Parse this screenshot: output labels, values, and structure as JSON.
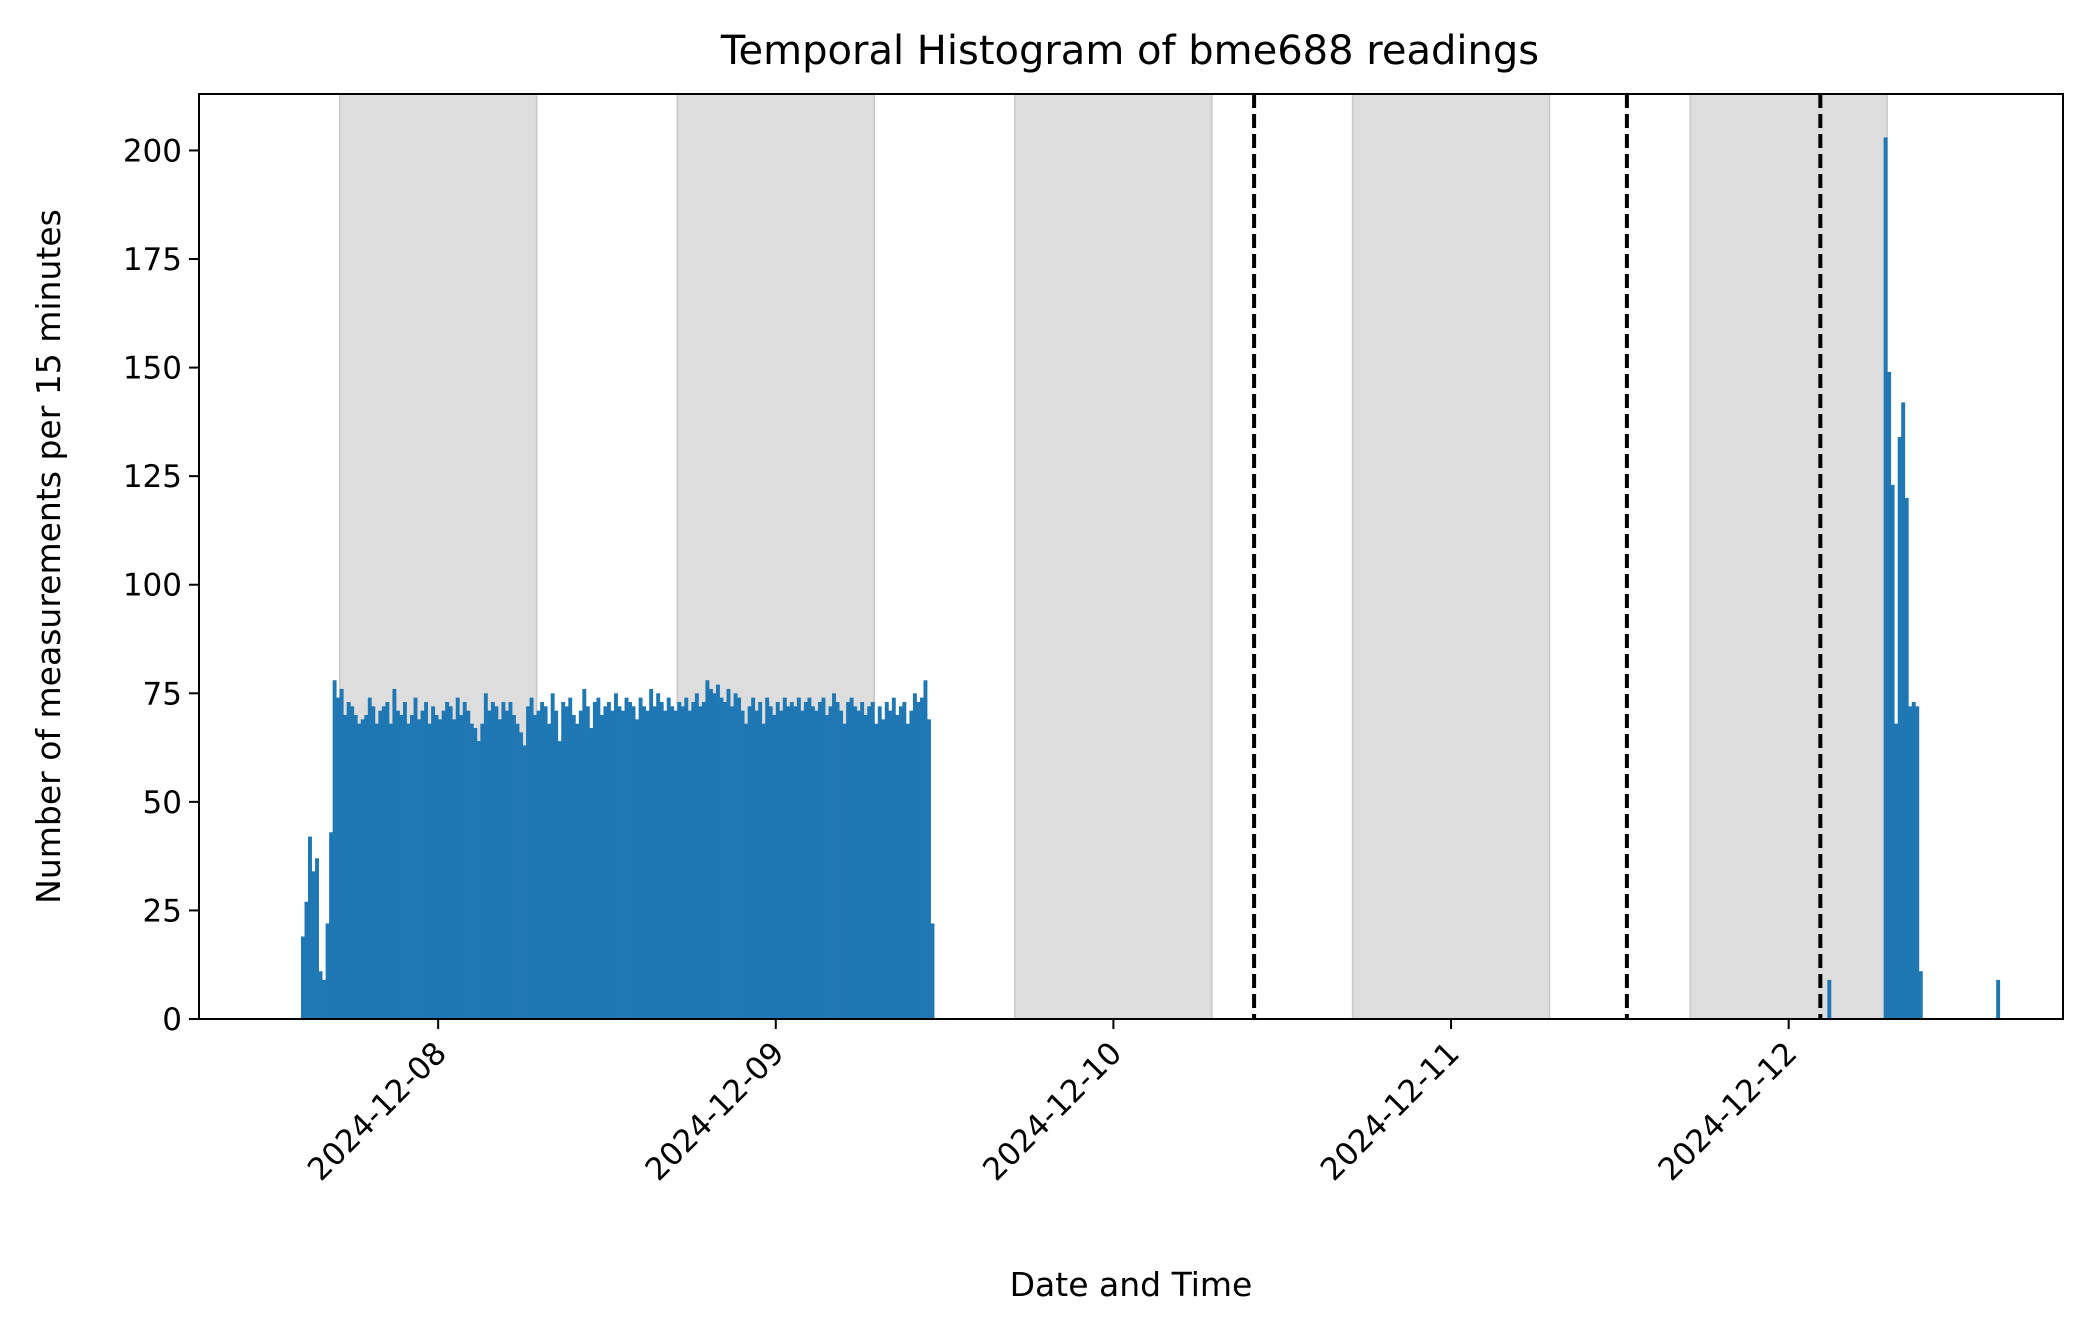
{
  "chart_data": {
    "type": "bar",
    "title": "Temporal Histogram of bme688 readings",
    "xlabel": "Date and Time",
    "ylabel": "Number of measurements per 15 minutes",
    "bin_minutes": 15,
    "xlim": [
      "2024-12-07T07:00",
      "2024-12-12T19:30"
    ],
    "ylim": [
      0,
      213
    ],
    "y_ticks": [
      0,
      25,
      50,
      75,
      100,
      125,
      150,
      175,
      200
    ],
    "x_ticks": [
      "2024-12-08",
      "2024-12-09",
      "2024-12-10",
      "2024-12-11",
      "2024-12-12"
    ],
    "grid": false,
    "legend": "none",
    "bar_color": "#1f77b4",
    "shaded_color": "#dddddd",
    "shaded_periods": [
      [
        "2024-12-07T17:00",
        "2024-12-08T07:00"
      ],
      [
        "2024-12-08T17:00",
        "2024-12-09T07:00"
      ],
      [
        "2024-12-09T17:00",
        "2024-12-10T07:00"
      ],
      [
        "2024-12-10T17:00",
        "2024-12-11T07:00"
      ],
      [
        "2024-12-11T17:00",
        "2024-12-12T07:00"
      ]
    ],
    "vertical_lines": [
      "2024-12-10T10:00",
      "2024-12-11T12:30",
      "2024-12-12T02:15"
    ],
    "series": [
      {
        "start": "2024-12-07T14:15",
        "values": [
          19,
          27,
          42,
          34,
          37,
          11,
          9,
          22,
          43,
          78,
          74,
          76,
          70,
          73,
          72,
          70,
          68,
          69,
          70,
          74,
          72,
          68,
          71,
          72,
          73,
          68,
          76,
          71,
          70,
          73,
          68,
          70,
          74,
          69,
          71,
          73,
          68,
          72,
          70,
          69,
          71,
          73,
          72,
          69,
          74,
          70,
          73,
          71,
          68,
          67,
          64,
          68,
          75,
          71,
          73,
          72,
          69,
          73,
          71,
          73,
          70,
          68,
          66,
          63,
          72,
          74,
          70,
          71,
          73,
          72,
          68,
          75,
          71,
          64,
          73,
          72,
          74,
          70,
          68,
          71,
          76,
          72,
          67,
          73,
          74,
          70,
          72,
          73,
          71,
          75,
          72,
          71,
          74,
          73,
          72,
          69,
          74,
          72,
          71,
          76,
          72,
          75,
          73,
          71,
          74,
          72,
          71,
          73,
          72,
          74,
          71,
          73,
          75,
          72,
          73,
          78,
          76,
          75,
          77,
          74,
          73,
          76,
          72,
          75,
          74,
          71,
          68,
          72,
          74,
          71,
          73,
          68,
          74,
          72,
          70,
          73,
          71,
          74,
          72,
          73,
          72,
          74,
          71,
          73,
          74,
          72,
          71,
          73,
          74,
          70,
          72,
          75,
          73,
          71,
          68,
          73,
          74,
          72,
          71,
          73,
          70,
          72,
          73,
          68,
          72,
          69,
          73,
          71,
          74,
          70,
          72,
          73,
          68,
          71,
          75,
          73,
          74,
          78,
          69,
          22
        ]
      },
      {
        "start": "2024-12-12T02:45",
        "values": [
          9
        ]
      },
      {
        "start": "2024-12-12T06:45",
        "values": [
          203,
          149,
          123,
          68,
          134,
          142,
          120,
          72,
          73,
          72,
          11
        ]
      },
      {
        "start": "2024-12-12T14:45",
        "values": [
          9
        ]
      }
    ]
  }
}
